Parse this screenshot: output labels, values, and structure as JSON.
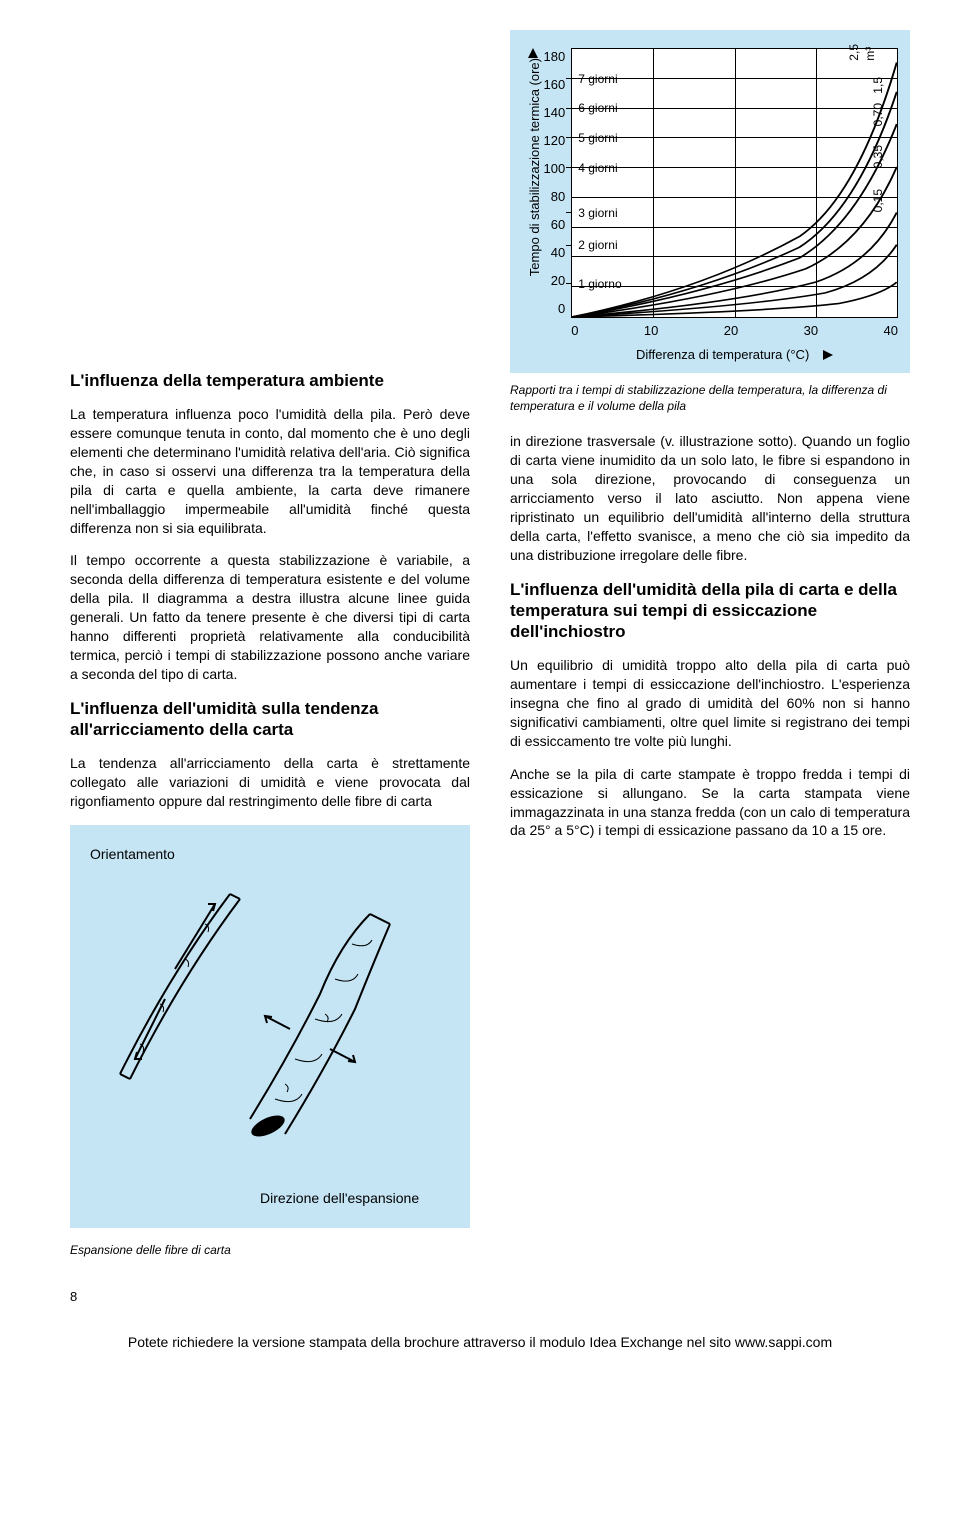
{
  "page_number": "8",
  "footer": "Potete richiedere la versione stampata della brochure attraverso il modulo Idea Exchange nel sito www.sappi.com",
  "left": {
    "h1": "L'influenza della temperatura ambiente",
    "p1": "La temperatura influenza poco l'umidità della pila. Però deve essere comunque tenuta in conto, dal momento che è uno degli elementi che determinano l'umidità relativa dell'aria. Ciò significa che, in caso si osservi una differenza tra la temperatura della pila di carta e quella ambiente, la carta deve rimanere nell'imballaggio impermeabile all'umidità finché questa differenza non si sia equilibrata.",
    "p2": "Il tempo occorrente a questa stabilizzazione è variabile, a seconda della differenza di temperatura esistente e del volume della pila. Il diagramma a destra illustra alcune linee guida generali. Un fatto da tenere presente è che diversi tipi di carta hanno differenti proprietà relativamente alla conducibilità termica, perciò i tempi di stabilizzazione possono anche variare a seconda del tipo di carta.",
    "h2": "L'influenza dell'umidità sulla tendenza all'arricciamento della carta",
    "p3": "La tendenza all'arricciamento della carta è strettamente collegato alle variazioni di umidità e viene provocata dal rigonfiamento oppure dal restringimento delle fibre di carta",
    "fiber_label1": "Orientamento",
    "fiber_label2": "Direzione dell'espansione",
    "fiber_caption": "Espansione delle fibre di carta"
  },
  "right": {
    "p1": "in direzione trasversale (v. illustrazione sotto). Quando un foglio di carta viene inumidito da un solo lato, le fibre si espandono in una sola direzione, provocando di conseguenza un arricciamento verso il lato asciutto. Non appena viene ripristinato un equilibrio dell'umidità all'interno della struttura della carta, l'effetto svanisce, a meno che ciò sia impedito da una distribuzione irregolare delle fibre.",
    "h1": "L'influenza dell'umidità della pila di carta e della temperatura sui tempi di essiccazione dell'inchiostro",
    "p2": "Un equilibrio di umidità troppo alto della pila di carta può aumentare i tempi di essiccazione dell'inchiostro. L'esperienza insegna che fino al grado di umidità del 60% non si hanno significativi cambiamenti, oltre quel limite si registrano dei tempi di essiccamento tre volte più lunghi.",
    "p3": "Anche se la pila di carte stampate è troppo fredda i tempi di essicazione si allungano. Se la carta stampata viene immagazzinata in una stanza fredda (con un calo di temperatura da 25° a 5°C) i tempi di essicazione passano da 10 a 15 ore."
  },
  "chart": {
    "type": "line",
    "ylabel": "Tempo di stabilizzazione termica (ore)",
    "xlabel": "Differenza di temperatura (°C)",
    "caption": "Rapporti tra i tempi di stabilizzazione della temperatura, la differenza di temperatura e il volume della pila",
    "y_min": 0,
    "y_max": 180,
    "y_step": 20,
    "yticks": [
      "180",
      "160",
      "140",
      "120",
      "100",
      "80",
      "60",
      "40",
      "20",
      "0"
    ],
    "x_min": 0,
    "x_max": 40,
    "x_step": 10,
    "xticks": [
      "0",
      "10",
      "20",
      "30",
      "40"
    ],
    "series_labels": [
      {
        "text": "7 giorni",
        "y": 160
      },
      {
        "text": "6 giorni",
        "y": 140
      },
      {
        "text": "5 giorni",
        "y": 120
      },
      {
        "text": "4 giorni",
        "y": 100
      },
      {
        "text": "3 giorni",
        "y": 70
      },
      {
        "text": "2 giorni",
        "y": 48
      },
      {
        "text": "1 giorno",
        "y": 22
      }
    ],
    "right_labels": [
      {
        "text": "2,5 m³",
        "y": 172
      },
      {
        "text": "1,5",
        "y": 150
      },
      {
        "text": "0,70",
        "y": 128
      },
      {
        "text": "0,35",
        "y": 100
      },
      {
        "text": "0,15",
        "y": 70
      }
    ],
    "colors": {
      "bg": "#c5e5f5",
      "grid": "#000000",
      "line": "#000000"
    }
  }
}
